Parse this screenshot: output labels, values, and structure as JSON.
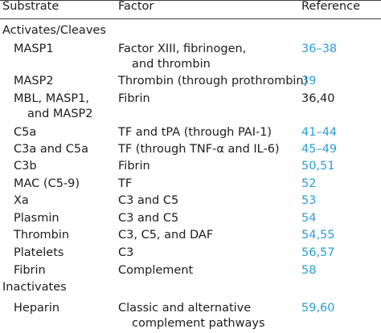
{
  "header": {
    "substrate": "Substrate",
    "factor": "Factor",
    "reference": "Reference"
  },
  "sections": [
    {
      "label": "Activates/Cleaves"
    },
    {
      "label": "Inactivates"
    }
  ],
  "rows": [
    {
      "substrate": "MASP1",
      "factor_line1": "Factor XIII, fibrinogen,",
      "factor_line2": "and thrombin",
      "reference": "36–38",
      "ref_link": true
    },
    {
      "substrate": "MASP2",
      "factor_line1": "Thrombin (through prothrombin)",
      "factor_line2": "",
      "reference": "39",
      "ref_link": true
    },
    {
      "substrate": "MBL, MASP1,",
      "substrate_line2": "and MASP2",
      "factor_line1": "Fibrin",
      "factor_line2": "",
      "reference": "36,40",
      "ref_link": false
    },
    {
      "substrate": "C5a",
      "factor_line1": "TF and tPA (through PAI-1)",
      "factor_line2": "",
      "reference": "41–44",
      "ref_link": true
    },
    {
      "substrate": "C3a and C5a",
      "factor_line1": "TF (through TNF-α and IL-6)",
      "factor_line2": "",
      "reference": "45–49",
      "ref_link": true
    },
    {
      "substrate": "C3b",
      "factor_line1": "Fibrin",
      "factor_line2": "",
      "reference": "50,51",
      "ref_link": true
    },
    {
      "substrate": "MAC (C5-9)",
      "factor_line1": "TF",
      "factor_line2": "",
      "reference": "52",
      "ref_link": true
    },
    {
      "substrate": "Xa",
      "factor_line1": "C3 and C5",
      "factor_line2": "",
      "reference": "53",
      "ref_link": true
    },
    {
      "substrate": "Plasmin",
      "factor_line1": "C3 and C5",
      "factor_line2": "",
      "reference": "54",
      "ref_link": true
    },
    {
      "substrate": "Thrombin",
      "factor_line1": "C3, C5, and DAF",
      "factor_line2": "",
      "reference": "54,55",
      "ref_link": true
    },
    {
      "substrate": "Platelets",
      "factor_line1": "C3",
      "factor_line2": "",
      "reference": "56,57",
      "ref_link": true
    },
    {
      "substrate": "Fibrin",
      "factor_line1": "Complement",
      "factor_line2": "",
      "reference": "58",
      "ref_link": true
    },
    {
      "substrate": "Heparin",
      "factor_line1": "Classic and alternative",
      "factor_line2": "complement pathways",
      "reference": "59,60",
      "ref_link": true
    }
  ]
}
